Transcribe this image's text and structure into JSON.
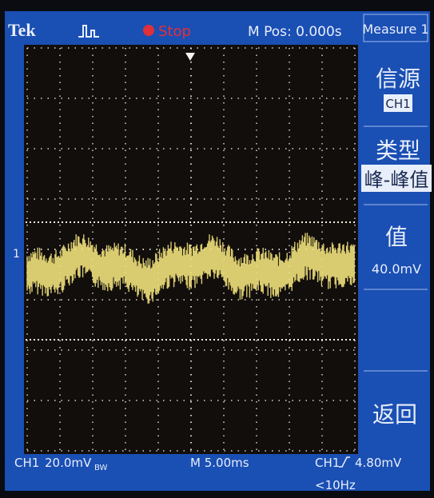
{
  "header": {
    "brand": "Tek",
    "status": "Stop",
    "position": "M Pos: 0.000s"
  },
  "menu": {
    "title": "Measure 1",
    "items": [
      {
        "label": "信源",
        "value": "CH1"
      },
      {
        "label": "类型",
        "value": "峰-峰值"
      },
      {
        "label": "值",
        "value": "40.0mV"
      },
      {
        "label": "返回"
      }
    ]
  },
  "footer": {
    "channel": "CH1",
    "scale": "20.0mV",
    "bandwidth": "BW",
    "timebase": "M 5.00ms",
    "trigger_source": "CH1",
    "trigger_level": "4.80mV",
    "frequency": "<10Hz"
  },
  "marker": "1"
}
